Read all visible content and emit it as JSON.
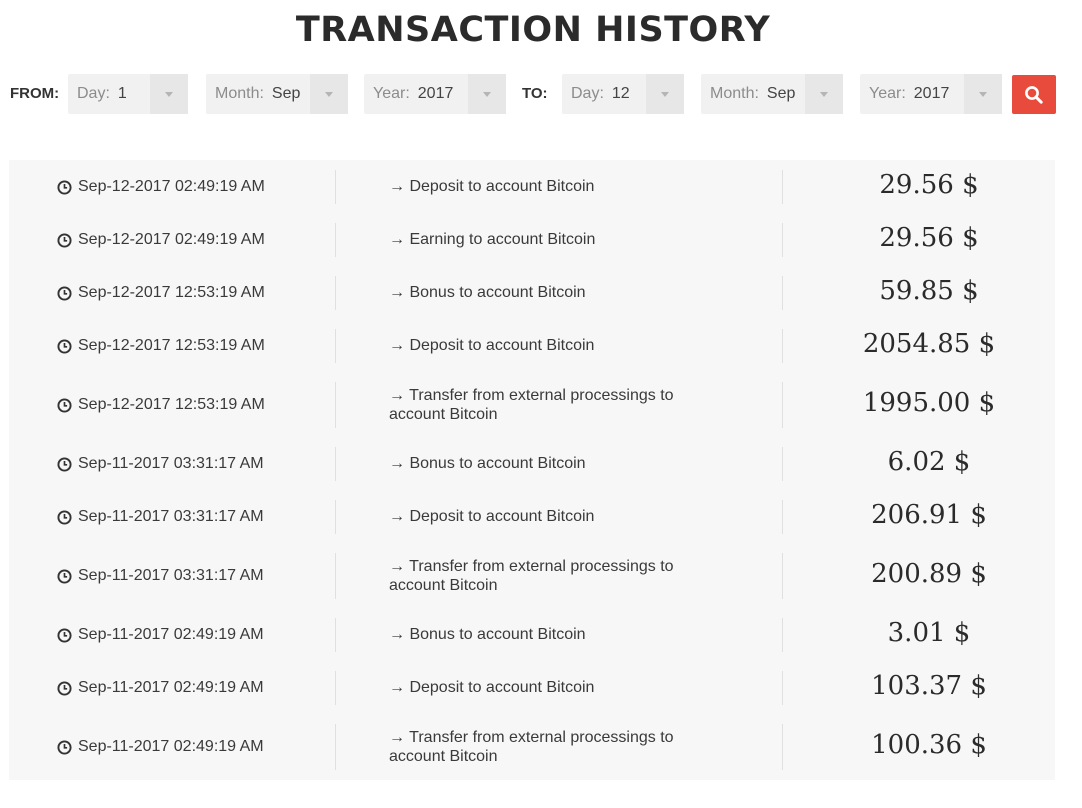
{
  "title": "TRANSACTION HISTORY",
  "filters": {
    "from_label": "FROM:",
    "to_label": "TO:",
    "from": {
      "day": {
        "prefix": "Day:",
        "value": "1"
      },
      "month": {
        "prefix": "Month:",
        "value": "Sep"
      },
      "year": {
        "prefix": "Year:",
        "value": "2017"
      }
    },
    "to": {
      "day": {
        "prefix": "Day:",
        "value": "12"
      },
      "month": {
        "prefix": "Month:",
        "value": "Sep"
      },
      "year": {
        "prefix": "Year:",
        "value": "2017"
      }
    },
    "search_icon": "search-icon",
    "search_color": "#e84b3c"
  },
  "transactions": [
    {
      "datetime": "Sep-12-2017 02:49:19 AM",
      "description": "→ Deposit to account Bitcoin",
      "amount": "29.56 $"
    },
    {
      "datetime": "Sep-12-2017 02:49:19 AM",
      "description": "→ Earning to account Bitcoin",
      "amount": "29.56 $"
    },
    {
      "datetime": "Sep-12-2017 12:53:19 AM",
      "description": "→ Bonus to account Bitcoin",
      "amount": "59.85 $"
    },
    {
      "datetime": "Sep-12-2017 12:53:19 AM",
      "description": "→ Deposit to account Bitcoin",
      "amount": "2054.85 $"
    },
    {
      "datetime": "Sep-12-2017 12:53:19 AM",
      "description": "→ Transfer from external processings to account Bitcoin",
      "amount": "1995.00 $"
    },
    {
      "datetime": "Sep-11-2017 03:31:17 AM",
      "description": "→ Bonus to account Bitcoin",
      "amount": "6.02 $"
    },
    {
      "datetime": "Sep-11-2017 03:31:17 AM",
      "description": "→ Deposit to account Bitcoin",
      "amount": "206.91 $"
    },
    {
      "datetime": "Sep-11-2017 03:31:17 AM",
      "description": "→ Transfer from external processings to account Bitcoin",
      "amount": "200.89 $"
    },
    {
      "datetime": "Sep-11-2017 02:49:19 AM",
      "description": "→ Bonus to account Bitcoin",
      "amount": "3.01 $"
    },
    {
      "datetime": "Sep-11-2017 02:49:19 AM",
      "description": "→ Deposit to account Bitcoin",
      "amount": "103.37 $"
    },
    {
      "datetime": "Sep-11-2017 02:49:19 AM",
      "description": "→ Transfer from external processings to account Bitcoin",
      "amount": "100.36 $"
    }
  ],
  "icons": {
    "row_icon": "clock-icon",
    "dropdown_icon": "chevron-down-icon"
  }
}
